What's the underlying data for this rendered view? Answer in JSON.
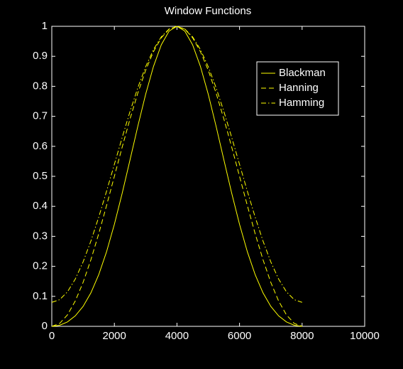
{
  "chart_data": {
    "type": "line",
    "title": "Window Functions",
    "x": [
      0,
      250,
      500,
      750,
      1000,
      1250,
      1500,
      1750,
      2000,
      2250,
      2500,
      2750,
      3000,
      3250,
      3500,
      3750,
      4000,
      4250,
      4500,
      4750,
      5000,
      5250,
      5500,
      5750,
      6000,
      6250,
      6500,
      6750,
      7000,
      7250,
      7500,
      7750,
      8000
    ],
    "series": [
      {
        "name": "Blackman",
        "color": "#ffff00",
        "dash": "solid",
        "values": [
          0,
          0.0035,
          0.0147,
          0.0349,
          0.0664,
          0.1116,
          0.1721,
          0.2486,
          0.34,
          0.4436,
          0.5547,
          0.6672,
          0.7736,
          0.8663,
          0.9385,
          0.9843,
          1,
          0.9843,
          0.9385,
          0.8663,
          0.7736,
          0.6672,
          0.5547,
          0.4436,
          0.34,
          0.2486,
          0.1721,
          0.1116,
          0.0664,
          0.0349,
          0.0147,
          0.0035,
          0
        ]
      },
      {
        "name": "Hanning",
        "color": "#ffff00",
        "dash": "dashed",
        "values": [
          0,
          0.0096,
          0.0381,
          0.0843,
          0.1464,
          0.2222,
          0.3087,
          0.4025,
          0.5,
          0.5975,
          0.6913,
          0.7778,
          0.8536,
          0.9157,
          0.9619,
          0.9904,
          1,
          0.9904,
          0.9619,
          0.9157,
          0.8536,
          0.7778,
          0.6913,
          0.5975,
          0.5,
          0.4025,
          0.3087,
          0.2222,
          0.1464,
          0.0843,
          0.0381,
          0.0096,
          0
        ]
      },
      {
        "name": "Hamming",
        "color": "#ffff00",
        "dash": "dashdot",
        "values": [
          0.08,
          0.0888,
          0.115,
          0.1575,
          0.2147,
          0.2844,
          0.364,
          0.4503,
          0.54,
          0.6297,
          0.716,
          0.7956,
          0.8653,
          0.9225,
          0.965,
          0.9912,
          1,
          0.9912,
          0.965,
          0.9225,
          0.8653,
          0.7956,
          0.716,
          0.6297,
          0.54,
          0.4503,
          0.364,
          0.2844,
          0.2147,
          0.1575,
          0.115,
          0.0888,
          0.08
        ]
      }
    ],
    "xlim": [
      0,
      10000
    ],
    "xticks": [
      0,
      2000,
      4000,
      6000,
      8000,
      10000
    ],
    "ylim": [
      0,
      1
    ],
    "yticks": [
      0,
      0.1,
      0.2,
      0.3,
      0.4,
      0.5,
      0.6,
      0.7,
      0.8,
      0.9,
      1
    ],
    "grid": false,
    "legend": "upper right"
  }
}
